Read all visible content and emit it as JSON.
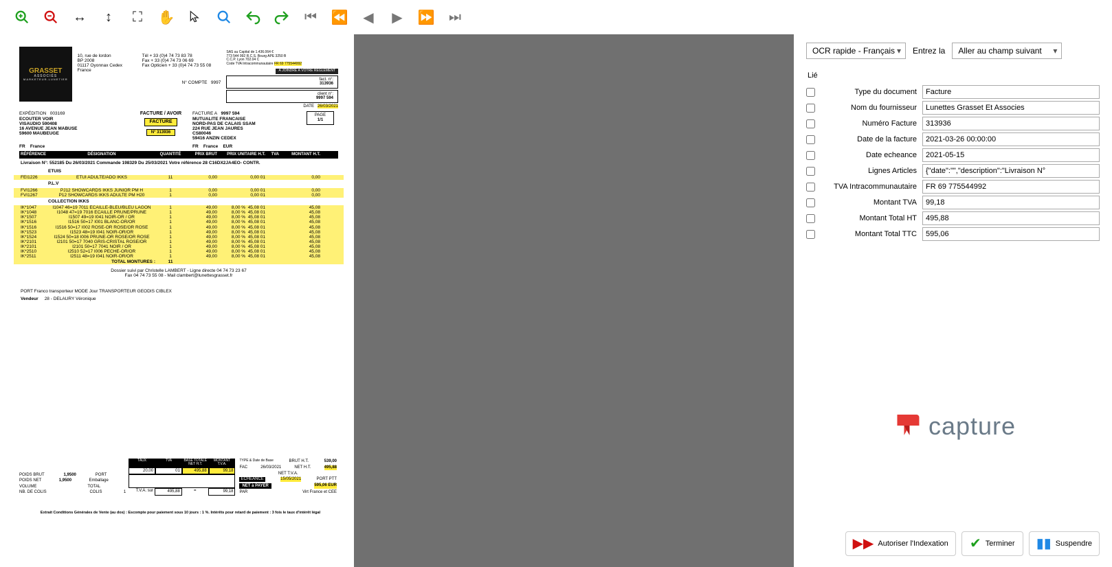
{
  "toolbar": {
    "icons": [
      "zoom-in",
      "zoom-out",
      "fit-horizontal",
      "fit-vertical",
      "fullscreen",
      "pan",
      "pointer",
      "search",
      "undo",
      "redo",
      "first",
      "prev-page",
      "prev",
      "next",
      "next-page",
      "last"
    ]
  },
  "ocr_dropdown": "OCR rapide - Français",
  "entrez_label": "Entrez la",
  "nav_dropdown": "Aller au champ suivant",
  "lie_label": "Lié",
  "fields": [
    {
      "label": "Type du document",
      "value": "Facture"
    },
    {
      "label": "Nom du fournisseur",
      "value": "Lunettes Grasset Et Associes"
    },
    {
      "label": "Numéro Facture",
      "value": "313936"
    },
    {
      "label": "Date de la facture",
      "value": "2021-03-26 00:00:00"
    },
    {
      "label": "Date echeance",
      "value": "2021-05-15"
    },
    {
      "label": "Lignes Articles",
      "value": "{\"date\":\"\",\"description\":\"Livraison N°"
    },
    {
      "label": "TVA Intracommunautaire",
      "value": "FR 69 775544992"
    },
    {
      "label": "Montant TVA",
      "value": "99,18"
    },
    {
      "label": "Montant Total HT",
      "value": "495,88"
    },
    {
      "label": "Montant Total TTC",
      "value": "595,06"
    }
  ],
  "buttons": {
    "authorize": "Autoriser l'Indexation",
    "finish": "Terminer",
    "suspend": "Suspendre"
  },
  "capture_brand": "capture",
  "doc": {
    "company": "GRASSET",
    "company_sub": "ASSOCIÉS",
    "company_tag": "MARKETEUR.LUNETIER",
    "addr": [
      "10, rue de lordon",
      "BP 2008",
      "01117 Oyonnax Cedex",
      "France"
    ],
    "phones": [
      "Tél + 33 (0)4 74 73 83 78",
      "Fax + 33 (0)4 74 73 06 69",
      "Fax Opticien + 33 (0)4 74 73 55 08"
    ],
    "siret": [
      "SAS au Capital de 1.436.064 €",
      "773 544 992 R.C.S. Bourg APE 3250 B",
      "C.C.P. Lyon 702.04 C"
    ],
    "tva_label": "Code TVA Intracommunautaire",
    "tva": "FR 69 775544992",
    "assure_badge": "À JOINDRE À VOTRE RÈGLEMENT",
    "fact_no_label": "fact. n°:",
    "fact_no": "313936",
    "client_no_label": "client n°:",
    "client_no": "9997 594",
    "compte_label": "N° COMPTE",
    "compte": "9997",
    "date_label": "DATE",
    "date": "26/03/2021",
    "exp_label": "EXPÉDITION",
    "exp_no": "003169",
    "exp": [
      "ECOUTER VOIR",
      "VISAUDIO 590408",
      "16 AVENUE JEAN MABUSE",
      "59600 MAUBEUGE"
    ],
    "fr_label": "FR",
    "france_label": "France",
    "facture_avoir": "FACTURE / AVOIR",
    "facture_badge": "FACTURE",
    "num_313936": "N° 313936",
    "facture_a_label": "FACTURE A",
    "facture_a_no": "9997 594",
    "dest": [
      "MUTUALITE FRANCAISE",
      "NORD-PAS DE CALAIS SSAM",
      "224 RUE JEAN JAURES",
      "CS80046",
      "59416 ANZIN CEDEX"
    ],
    "eur_label": "EUR",
    "page_label": "PAGE",
    "page": "1/1",
    "thead": [
      "RÉFÉRENCE",
      "DÉSIGNATION",
      "QUANTITÉ",
      "PRIX BRUT",
      "PRIX UNITAIRE H.T.",
      "TVA",
      "MONTANT H.T."
    ],
    "livraison": "Livraison N°: 552185 Du 26/03/2021     Commande 198329 Du 25/03/2021   Votre référence 28   C16DX2JA4EO- CONTR.",
    "sec_etuis": "ETUIS",
    "etuis_line": {
      "ref": "FEI1226",
      "des": "ETUI ADULTE/ADO IKKS",
      "qty": "11",
      "pb": "0,00",
      "puht": "0,00",
      "tva": "01",
      "mht": "0,00"
    },
    "sec_plv": "P.L.V",
    "plv_lines": [
      {
        "ref": "FVI1266",
        "des": "PJ12 SHOWCARDS IKKS JUNIOR PM H",
        "qty": "1",
        "pb": "0,00",
        "puht": "0,00",
        "tva": "01",
        "mht": "0,00"
      },
      {
        "ref": "FVI1267",
        "des": "P12 SHOWCARDS IKKS ADULTE PM H20",
        "qty": "1",
        "pb": "0,00",
        "puht": "0,00",
        "tva": "01",
        "mht": "0,00"
      }
    ],
    "sec_coll": "COLLECTION IKKS",
    "coll_lines": [
      {
        "ref": "IK*1047",
        "des": "I1047 46=19 7011 ECAILLE-BLEU/BLEU LAGON",
        "qty": "1",
        "pb": "49,00",
        "rem": "8,00 %",
        "puht": "45,08",
        "tva": "01",
        "mht": "45,08"
      },
      {
        "ref": "IK*1048",
        "des": "I1048 47=19 7016 ECAILLE PRUNE/PRUNE",
        "qty": "1",
        "pb": "49,00",
        "rem": "8,00 %",
        "puht": "45,08",
        "tva": "01",
        "mht": "45,08"
      },
      {
        "ref": "IK*1507",
        "des": "I1507 49=19 I041 NOIR-OR / OR",
        "qty": "1",
        "pb": "49,00",
        "rem": "8,00 %",
        "puht": "45,08",
        "tva": "01",
        "mht": "45,08"
      },
      {
        "ref": "IK*1516",
        "des": "I1516 50=17 I001 BLANC-OR/OR",
        "qty": "1",
        "pb": "49,00",
        "rem": "8,00 %",
        "puht": "45,08",
        "tva": "01",
        "mht": "45,08"
      },
      {
        "ref": "IK*1516",
        "des": "I1516 50=17 I002 ROSE-OR ROSE/OR ROSE",
        "qty": "1",
        "pb": "49,00",
        "rem": "8,00 %",
        "puht": "45,08",
        "tva": "01",
        "mht": "45,08"
      },
      {
        "ref": "IK*1523",
        "des": "I1523 48=19 I041 NOIR-OR/OR",
        "qty": "1",
        "pb": "49,00",
        "rem": "8,00 %",
        "puht": "45,08",
        "tva": "01",
        "mht": "45,08"
      },
      {
        "ref": "IK*1524",
        "des": "I1524 50=18 I006 PRUNE-OR ROSE/OR ROSE",
        "qty": "1",
        "pb": "49,00",
        "rem": "8,00 %",
        "puht": "45,08",
        "tva": "01",
        "mht": "45,08"
      },
      {
        "ref": "IK*2101",
        "des": "I2101 50=17 7040 GRIS-CRISTAL ROSE/OR",
        "qty": "1",
        "pb": "49,00",
        "rem": "8,00 %",
        "puht": "45,08",
        "tva": "01",
        "mht": "45,08"
      },
      {
        "ref": "IK*2101",
        "des": "I2101 50=17 7041 NOIR / OR",
        "qty": "1",
        "pb": "49,00",
        "rem": "8,00 %",
        "puht": "45,08",
        "tva": "01",
        "mht": "45,08"
      },
      {
        "ref": "IK*2510",
        "des": "I2510 52=17 I006 PECHE-OR/OR",
        "qty": "1",
        "pb": "49,00",
        "rem": "8,00 %",
        "puht": "45,08",
        "tva": "01",
        "mht": "45,08"
      },
      {
        "ref": "IK*2511",
        "des": "I2511 48=19 I041 NOIR-OR/OR",
        "qty": "1",
        "pb": "49,00",
        "rem": "8,00 %",
        "puht": "45,08",
        "tva": "01",
        "mht": "45,08"
      }
    ],
    "total_mont_label": "TOTAL MONTURES :",
    "total_mont_qty": "11",
    "dossier": [
      "Dossier suivi par Christelle LAMBERT - Ligne directe 04 74 73 23 67",
      "Fax 04 74 73 55 08 - Mail clambert@lunettesgrasset.fr"
    ],
    "port_line": "PORT Franco transporteur       MODE Jour       TRANSPORTEUR GEODIS CIBLEX",
    "vendeur_label": "Vendeur",
    "vendeur": "28 - DELAURY Véronique",
    "foot_left": [
      {
        "l": "POIDS BRUT",
        "v": "1,9500",
        "l2": "PORT"
      },
      {
        "l": "POIDS NET",
        "v": "1,9500",
        "l2": "Emballage"
      },
      {
        "l": "VOLUME",
        "v": "",
        "l2": "TOTAL"
      },
      {
        "l": "NB. DE COLIS",
        "v": "",
        "l2": "COLIS",
        "v2": "1"
      }
    ],
    "foot_mid_head": [
      "TAUX",
      "TVA",
      "BASE TOTALE NET H.T.",
      "MONTANT T.V.A."
    ],
    "foot_mid_row": [
      "20,00",
      "01",
      "495,88",
      "99,18"
    ],
    "tva_sur": "T.V.A. sur",
    "tva_sur_vals": [
      "495,88",
      "=",
      "99,18"
    ],
    "foot_right": [
      {
        "l": "TYPE & Date de Base",
        "v": "BRUT H.T.",
        "r": "539,00"
      },
      {
        "l": "FAC",
        "v": "26/03/2021",
        "m": "NET H.T.",
        "r": "495,88"
      },
      {
        "l": "",
        "v": "",
        "m": "NET T.V.A.",
        "r": ""
      },
      {
        "l": "ÉCHÉANCE",
        "v": "15/05/2021",
        "m": "PORT PTT",
        "r": ""
      }
    ],
    "net_payer_label": "NET à PAYER",
    "net_payer": "595,06 EUR",
    "par_label": "PAR",
    "par_val": "Virt France et CEE",
    "extrait": "Extrait Conditions Générales de Vente (au dos) : Escompte pour paiement sous 10 jours : 1 %. Intérêts pour retard de paiement : 3 fois le taux d'intérêt légal"
  }
}
